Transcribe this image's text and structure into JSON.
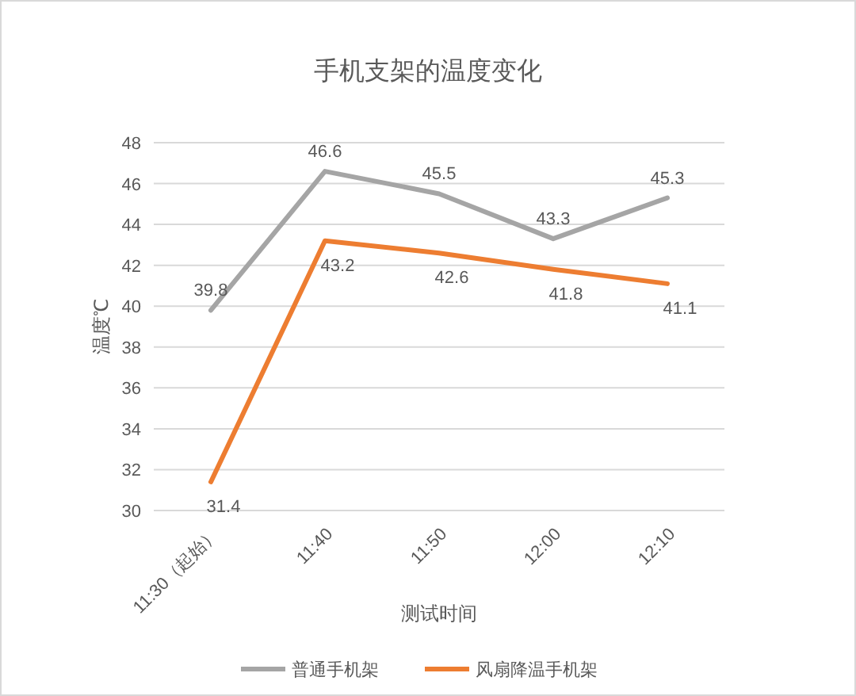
{
  "chart_data": {
    "type": "line",
    "title": "手机支架的温度变化",
    "xlabel": "测试时间",
    "ylabel": "温度℃",
    "categories": [
      "11:30（起始）",
      "11:40",
      "11:50",
      "12:00",
      "12:10"
    ],
    "series": [
      {
        "name": "普通手机架",
        "color": "#a5a5a5",
        "values": [
          39.8,
          46.6,
          45.5,
          43.3,
          45.3
        ]
      },
      {
        "name": "风扇降温手机架",
        "color": "#ed7d31",
        "values": [
          31.4,
          43.2,
          42.6,
          41.8,
          41.1
        ]
      }
    ],
    "ylim": [
      30,
      48
    ],
    "yticks": [
      30,
      32,
      34,
      36,
      38,
      40,
      42,
      44,
      46,
      48
    ],
    "grid": "y",
    "legend": "bottom",
    "data_labels": true,
    "marker": "none",
    "line_style": "solid"
  }
}
